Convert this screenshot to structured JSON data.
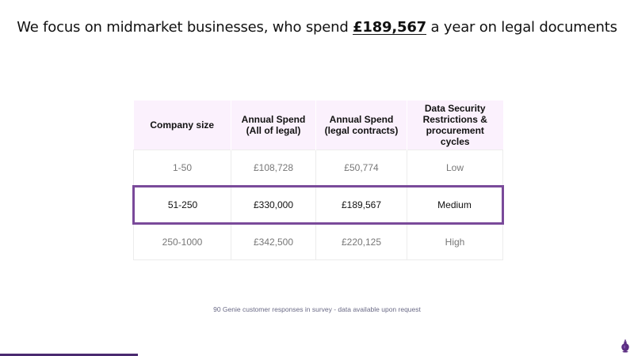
{
  "headline": {
    "before": "We focus on midmarket businesses, who spend ",
    "emphasis": "£189,567",
    "after": " a year on legal documents"
  },
  "table": {
    "headers": [
      "Company size",
      "Annual Spend (All of legal)",
      "Annual Spend (legal contracts)",
      "Data Security Restrictions & procurement cycles"
    ],
    "rows": [
      [
        "1-50",
        "£108,728",
        "£50,774",
        "Low"
      ],
      [
        "51-250",
        "£330,000",
        "£189,567",
        "Medium"
      ],
      [
        "250-1000",
        "£342,500",
        "£220,125",
        "High"
      ]
    ],
    "highlighted_row": 1
  },
  "footnote": "90 Genie customer responses in survey - data available upon request",
  "logo": {
    "icon": "genie-lamp-icon",
    "color": "#5b2d82"
  },
  "colors": {
    "accent": "#7a4a9a",
    "header_bg": "#fbf1fd",
    "bottom_bar": "#4a2a70"
  }
}
